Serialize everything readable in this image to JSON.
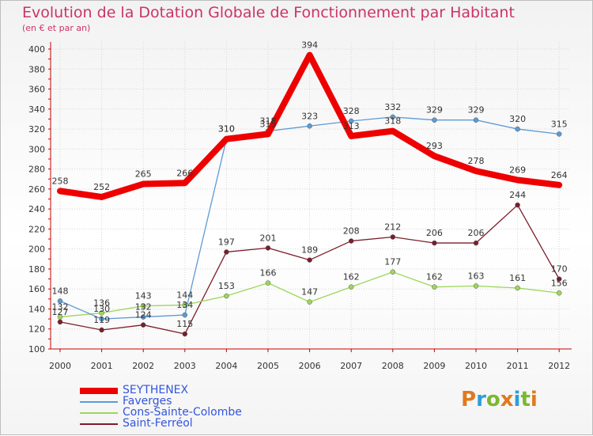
{
  "page": {
    "title": "Evolution de la Dotation Globale de Fonctionnement par Habitant",
    "subtitle": "(en € et par an)"
  },
  "logo": {
    "text": "Proxiti",
    "letters": [
      {
        "ch": "P",
        "color": "#e07a1e"
      },
      {
        "ch": "r",
        "color": "#2a9fd8"
      },
      {
        "ch": "o",
        "color": "#7cb82f"
      },
      {
        "ch": "x",
        "color": "#e07a1e"
      },
      {
        "ch": "i",
        "color": "#2a9fd8"
      },
      {
        "ch": "t",
        "color": "#7cb82f"
      },
      {
        "ch": "i",
        "color": "#e07a1e"
      }
    ]
  },
  "chart_data": {
    "type": "line",
    "title": "Evolution de la Dotation Globale de Fonctionnement par Habitant",
    "subtitle": "(en € et par an)",
    "x": [
      "2000",
      "2001",
      "2002",
      "2003",
      "2004",
      "2005",
      "2006",
      "2007",
      "2008",
      "2009",
      "2010",
      "2011",
      "2012"
    ],
    "ylim": [
      100,
      400
    ],
    "yticks": [
      100,
      120,
      140,
      160,
      180,
      200,
      220,
      240,
      260,
      280,
      300,
      320,
      340,
      360,
      380,
      400
    ],
    "grid": true,
    "legend_position": "bottom-left",
    "series": [
      {
        "name": "SEYTHENEX",
        "color": "#ee0000",
        "values": [
          258,
          252,
          265,
          266,
          310,
          315,
          394,
          313,
          318,
          293,
          278,
          269,
          264
        ],
        "labels": [
          "258",
          "252",
          "265",
          "266",
          "310",
          "315",
          "394",
          "313",
          "318",
          "293",
          "278",
          "269",
          "264"
        ]
      },
      {
        "name": "Faverges",
        "color": "#5b9bd5",
        "values": [
          148,
          130,
          132,
          134,
          310,
          318,
          323,
          328,
          332,
          329,
          329,
          320,
          315
        ],
        "labels": [
          "148",
          "130",
          "132",
          "134",
          "310",
          "318",
          "323",
          "328",
          "332",
          "329",
          "329",
          "320",
          "315"
        ]
      },
      {
        "name": "Cons-Sainte-Colombe",
        "color": "#9ed65b",
        "values": [
          132,
          136,
          143,
          144,
          153,
          166,
          147,
          162,
          177,
          162,
          163,
          161,
          156
        ],
        "labels": [
          "132",
          "136",
          "143",
          "144",
          "153",
          "166",
          "147",
          "162",
          "177",
          "162",
          "163",
          "161",
          "156"
        ]
      },
      {
        "name": "Saint-Ferréol",
        "color": "#7a1e2a",
        "values": [
          127,
          119,
          124,
          115,
          197,
          201,
          189,
          208,
          212,
          206,
          206,
          244,
          170
        ],
        "labels": [
          "127",
          "119",
          "124",
          "115",
          "197",
          "201",
          "189",
          "208",
          "212",
          "206",
          "206",
          "244",
          "170"
        ]
      }
    ]
  }
}
